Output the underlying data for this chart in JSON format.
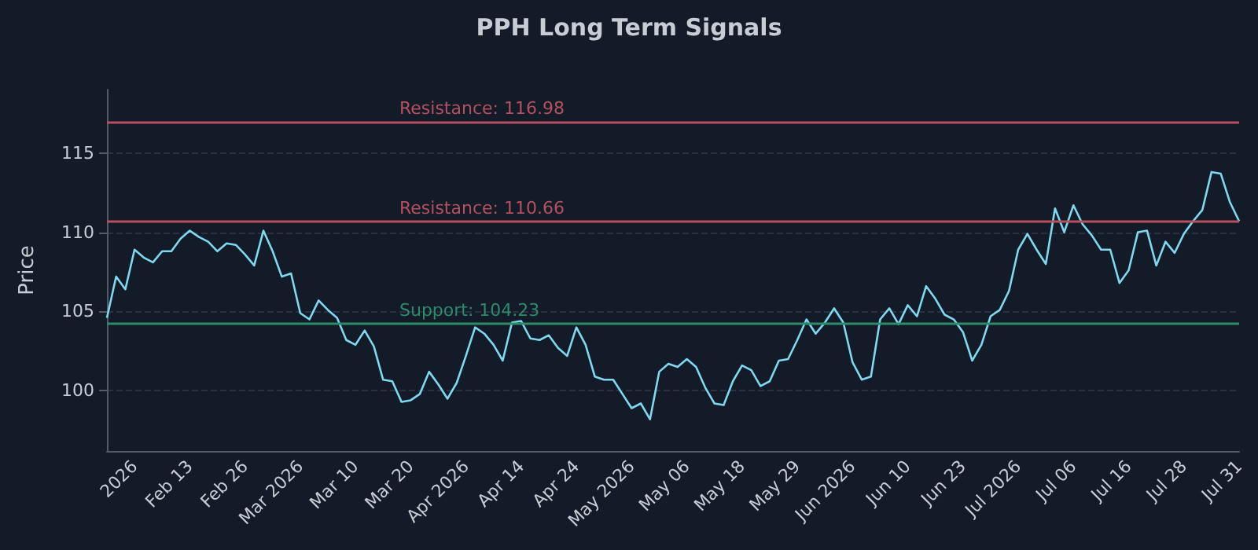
{
  "chart_data": {
    "type": "line",
    "title": "PPH Long Term Signals",
    "ylabel": "Price",
    "categories": [
      null,
      null,
      null,
      "2026",
      null,
      null,
      null,
      null,
      null,
      "Feb 13",
      null,
      null,
      null,
      null,
      null,
      "Feb 26",
      null,
      null,
      null,
      null,
      null,
      "Mar 2026",
      null,
      null,
      null,
      null,
      null,
      "Mar 10",
      null,
      null,
      null,
      null,
      null,
      "Mar 20",
      null,
      null,
      null,
      null,
      null,
      "Apr 2026",
      null,
      null,
      null,
      null,
      null,
      "Apr 14",
      null,
      null,
      null,
      null,
      null,
      "Apr 24",
      null,
      null,
      null,
      null,
      null,
      "May 2026",
      null,
      null,
      null,
      null,
      null,
      "May 06",
      null,
      null,
      null,
      null,
      null,
      "May 18",
      null,
      null,
      null,
      null,
      null,
      "May 29",
      null,
      null,
      null,
      null,
      null,
      "Jun 2026",
      null,
      null,
      null,
      null,
      null,
      "Jun 10",
      null,
      null,
      null,
      null,
      null,
      "Jun 23",
      null,
      null,
      null,
      null,
      null,
      "Jul 2026",
      null,
      null,
      null,
      null,
      null,
      "Jul 06",
      null,
      null,
      null,
      null,
      null,
      "Jul 16",
      null,
      null,
      null,
      null,
      null,
      "Jul 28",
      null,
      null,
      null,
      null,
      null,
      "Jul 31"
    ],
    "series": [
      {
        "color": "#7fd8f0",
        "values": [
          104.6,
          107.2,
          106.4,
          108.9,
          108.4,
          108.1,
          108.8,
          108.8,
          109.6,
          110.1,
          109.7,
          109.4,
          108.8,
          109.3,
          109.2,
          108.6,
          107.9,
          110.1,
          108.8,
          107.2,
          107.4,
          104.9,
          104.5,
          105.7,
          105.1,
          104.6,
          103.2,
          102.9,
          103.8,
          102.8,
          100.7,
          100.6,
          99.3,
          99.4,
          99.8,
          101.2,
          100.4,
          99.5,
          100.5,
          102.2,
          104.0,
          103.6,
          102.9,
          101.9,
          104.3,
          104.4,
          103.3,
          103.2,
          103.5,
          102.7,
          102.2,
          104.0,
          102.9,
          100.9,
          100.7,
          100.7,
          99.8,
          98.9,
          99.2,
          98.2,
          101.2,
          101.7,
          101.5,
          102.0,
          101.5,
          100.2,
          99.2,
          99.1,
          100.6,
          101.6,
          101.3,
          100.3,
          100.6,
          101.9,
          102.0,
          103.2,
          104.5,
          103.6,
          104.3,
          105.2,
          104.3,
          101.8,
          100.7,
          100.9,
          104.5,
          105.2,
          104.2,
          105.4,
          104.7,
          106.6,
          105.8,
          104.8,
          104.5,
          103.7,
          101.9,
          102.9,
          104.7,
          105.1,
          106.3,
          108.9,
          109.9,
          108.9,
          108.0,
          111.5,
          110.0,
          111.7,
          110.5,
          109.8,
          108.9,
          108.9,
          106.8,
          107.6,
          110.0,
          110.1,
          107.9,
          109.4,
          108.7,
          109.9,
          110.7,
          111.4,
          113.8,
          113.7,
          111.9,
          110.7
        ]
      }
    ],
    "ylim": [
      96.2,
      119
    ],
    "yticks": [
      100,
      105,
      110,
      115
    ],
    "grid": "y",
    "marker": "none",
    "line_style": "solid",
    "ref_lines": [
      {
        "axis": "y",
        "value": 116.98,
        "label": "Resistance: 116.98",
        "color": "#b5505e"
      },
      {
        "axis": "y",
        "value": 110.66,
        "label": "Resistance: 110.66",
        "color": "#b5505e"
      },
      {
        "axis": "y",
        "value": 104.23,
        "label": "Support: 104.23",
        "color": "#2e8b6a"
      }
    ]
  }
}
